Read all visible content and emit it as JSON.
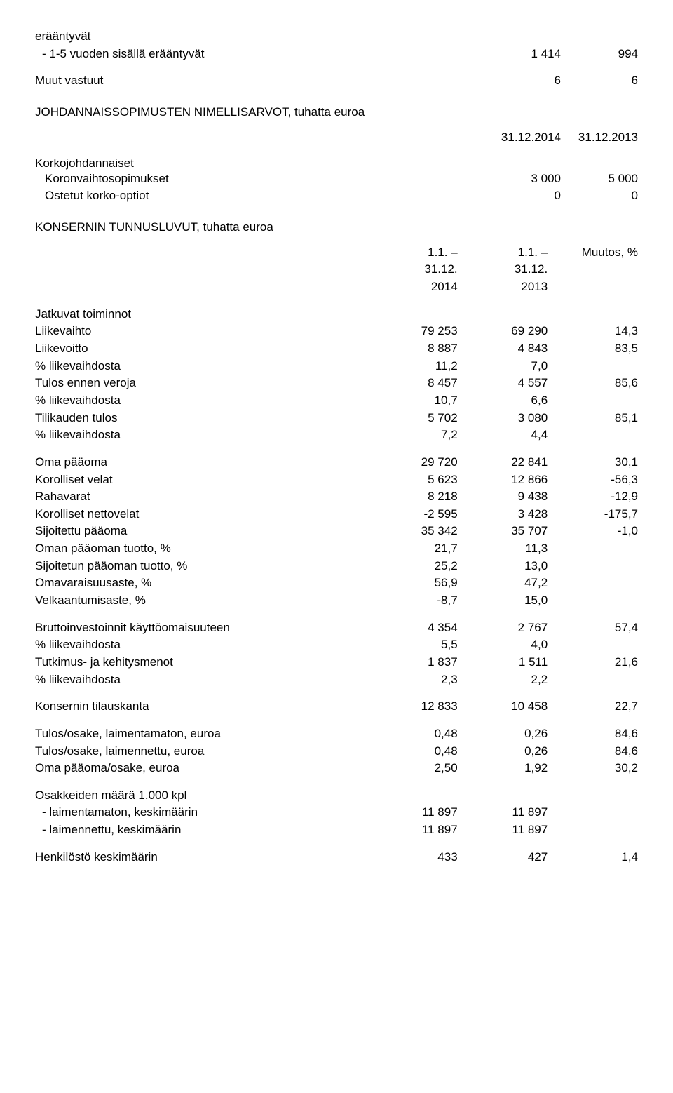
{
  "top": {
    "eraantyvat_label": "erääntyvät",
    "sub_label": "- 1-5 vuoden sisällä erääntyvät",
    "sub_v1": "1 414",
    "sub_v2": "994",
    "muut_label": "Muut vastuut",
    "muut_v1": "6",
    "muut_v2": "6"
  },
  "section1": {
    "title": "JOHDANNAISSOPIMUSTEN NIMELLISARVOT, tuhatta euroa",
    "h_c1": "31.12.2014",
    "h_c2": "31.12.2013",
    "korko_title": "Korkojohdannaiset",
    "r1_label": "Koronvaihtosopimukset",
    "r1_v1": "3 000",
    "r1_v2": "5 000",
    "r2_label": "Ostetut korko-optiot",
    "r2_v1": "0",
    "r2_v2": "0"
  },
  "section2": {
    "title": "KONSERNIN TUNNUSLUVUT, tuhatta euroa",
    "h_c1a": "1.1. –",
    "h_c1b": "31.12.",
    "h_c1c": "2014",
    "h_c2a": "1.1. –",
    "h_c2b": "31.12.",
    "h_c2c": "2013",
    "h_c3": "Muutos, %",
    "jatkuvat": "Jatkuvat toiminnot",
    "rows1": [
      {
        "label": "Liikevaihto",
        "a": "79 253",
        "b": "69 290",
        "c": "14,3"
      },
      {
        "label": "Liikevoitto",
        "a": "8 887",
        "b": "4 843",
        "c": "83,5"
      },
      {
        "label": "% liikevaihdosta",
        "a": "11,2",
        "b": "7,0",
        "c": ""
      },
      {
        "label": "Tulos ennen veroja",
        "a": "8 457",
        "b": "4 557",
        "c": "85,6"
      },
      {
        "label": "% liikevaihdosta",
        "a": "10,7",
        "b": "6,6",
        "c": ""
      },
      {
        "label": "Tilikauden tulos",
        "a": "5 702",
        "b": "3 080",
        "c": "85,1"
      },
      {
        "label": "% liikevaihdosta",
        "a": "7,2",
        "b": "4,4",
        "c": ""
      }
    ],
    "rows2": [
      {
        "label": "Oma pääoma",
        "a": "29 720",
        "b": "22 841",
        "c": "30,1"
      },
      {
        "label": "Korolliset velat",
        "a": "5 623",
        "b": "12 866",
        "c": "-56,3"
      },
      {
        "label": "Rahavarat",
        "a": "8 218",
        "b": "9 438",
        "c": "-12,9"
      },
      {
        "label": "Korolliset nettovelat",
        "a": "-2 595",
        "b": "3 428",
        "c": "-175,7"
      },
      {
        "label": "Sijoitettu pääoma",
        "a": "35 342",
        "b": "35 707",
        "c": "-1,0"
      },
      {
        "label": "Oman pääoman tuotto, %",
        "a": "21,7",
        "b": "11,3",
        "c": ""
      },
      {
        "label": "Sijoitetun pääoman tuotto, %",
        "a": "25,2",
        "b": "13,0",
        "c": ""
      },
      {
        "label": "Omavaraisuusaste, %",
        "a": "56,9",
        "b": "47,2",
        "c": ""
      },
      {
        "label": "Velkaantumisaste, %",
        "a": "-8,7",
        "b": "15,0",
        "c": ""
      }
    ],
    "rows3": [
      {
        "label": "Bruttoinvestoinnit käyttöomaisuuteen",
        "a": "4 354",
        "b": "2 767",
        "c": "57,4"
      },
      {
        "label": "% liikevaihdosta",
        "a": "5,5",
        "b": "4,0",
        "c": ""
      },
      {
        "label": "Tutkimus- ja kehitysmenot",
        "a": "1 837",
        "b": "1 511",
        "c": "21,6"
      },
      {
        "label": "% liikevaihdosta",
        "a": "2,3",
        "b": "2,2",
        "c": ""
      }
    ],
    "rows4": [
      {
        "label": "Konsernin tilauskanta",
        "a": "12 833",
        "b": "10 458",
        "c": "22,7"
      }
    ],
    "rows5": [
      {
        "label": "Tulos/osake, laimentamaton, euroa",
        "a": "0,48",
        "b": "0,26",
        "c": "84,6"
      },
      {
        "label": "Tulos/osake, laimennettu, euroa",
        "a": "0,48",
        "b": "0,26",
        "c": "84,6"
      },
      {
        "label": "Oma pääoma/osake, euroa",
        "a": "2,50",
        "b": "1,92",
        "c": "30,2"
      }
    ],
    "osakkeet_title": "Osakkeiden määrä 1.000 kpl",
    "rows6": [
      {
        "label": "- laimentamaton, keskimäärin",
        "a": "11 897",
        "b": "11 897",
        "c": ""
      },
      {
        "label": "- laimennettu, keskimäärin",
        "a": "11 897",
        "b": "11 897",
        "c": ""
      }
    ],
    "rows7": [
      {
        "label": "Henkilöstö keskimäärin",
        "a": "433",
        "b": "427",
        "c": "1,4"
      }
    ]
  }
}
